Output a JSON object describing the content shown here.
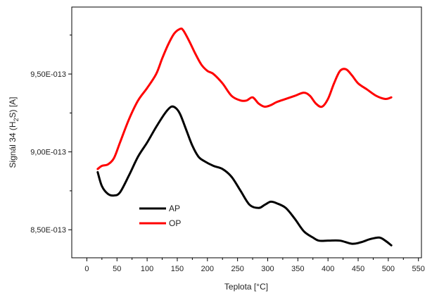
{
  "chart_data": {
    "type": "line",
    "xlabel": "Teplota [°C]",
    "ylabel_main": "Signál 34 (H",
    "ylabel_sub": "2",
    "ylabel_tail": "S)    [A]",
    "xlim": [
      -25,
      555
    ],
    "ylim": [
      8.32e-13,
      9.93e-13
    ],
    "x_ticks": [
      0,
      50,
      100,
      150,
      200,
      250,
      300,
      350,
      400,
      450,
      500,
      550
    ],
    "x_tick_labels": [
      "0",
      "50",
      "100",
      "150",
      "200",
      "250",
      "300",
      "350",
      "400",
      "450",
      "500",
      "550"
    ],
    "y_ticks": [
      8.5e-13,
      9e-13,
      9.5e-13
    ],
    "y_tick_labels": [
      "8,50E-013",
      "9,00E-013",
      "9,50E-013"
    ],
    "grid": false,
    "legend_position": "bottom-left",
    "series": [
      {
        "name": "AP",
        "color": "#000000",
        "x": [
          18,
          25,
          35,
          45,
          55,
          70,
          85,
          100,
          115,
          130,
          140,
          148,
          155,
          165,
          175,
          185,
          195,
          210,
          225,
          240,
          255,
          270,
          285,
          295,
          305,
          315,
          330,
          345,
          360,
          375,
          385,
          400,
          420,
          440,
          455,
          470,
          485,
          495,
          505
        ],
        "y": [
          8.87e-13,
          8.78e-13,
          8.73e-13,
          8.72e-13,
          8.74e-13,
          8.85e-13,
          8.97e-13,
          9.06e-13,
          9.16e-13,
          9.25e-13,
          9.29e-13,
          9.28e-13,
          9.24e-13,
          9.14e-13,
          9.04e-13,
          8.97e-13,
          8.94e-13,
          8.91e-13,
          8.89e-13,
          8.84e-13,
          8.75e-13,
          8.66e-13,
          8.64e-13,
          8.66e-13,
          8.68e-13,
          8.67e-13,
          8.64e-13,
          8.57e-13,
          8.49e-13,
          8.45e-13,
          8.43e-13,
          8.43e-13,
          8.43e-13,
          8.41e-13,
          8.42e-13,
          8.44e-13,
          8.45e-13,
          8.43e-13,
          8.4e-13
        ]
      },
      {
        "name": "OP",
        "color": "#ff0000",
        "x": [
          18,
          25,
          35,
          45,
          55,
          70,
          85,
          100,
          115,
          125,
          135,
          145,
          155,
          160,
          170,
          180,
          190,
          200,
          210,
          225,
          240,
          255,
          265,
          275,
          285,
          295,
          305,
          315,
          330,
          345,
          360,
          370,
          380,
          390,
          400,
          410,
          420,
          430,
          440,
          450,
          465,
          480,
          495,
          505
        ],
        "y": [
          8.89e-13,
          8.91e-13,
          8.92e-13,
          8.96e-13,
          9.06e-13,
          9.21e-13,
          9.33e-13,
          9.41e-13,
          9.5e-13,
          9.6e-13,
          9.69e-13,
          9.76e-13,
          9.79e-13,
          9.78e-13,
          9.71e-13,
          9.63e-13,
          9.56e-13,
          9.52e-13,
          9.5e-13,
          9.44e-13,
          9.36e-13,
          9.33e-13,
          9.33e-13,
          9.35e-13,
          9.31e-13,
          9.29e-13,
          9.3e-13,
          9.32e-13,
          9.34e-13,
          9.36e-13,
          9.38e-13,
          9.36e-13,
          9.31e-13,
          9.29e-13,
          9.34e-13,
          9.44e-13,
          9.52e-13,
          9.53e-13,
          9.49e-13,
          9.44e-13,
          9.4e-13,
          9.36e-13,
          9.34e-13,
          9.35e-13
        ]
      }
    ]
  }
}
